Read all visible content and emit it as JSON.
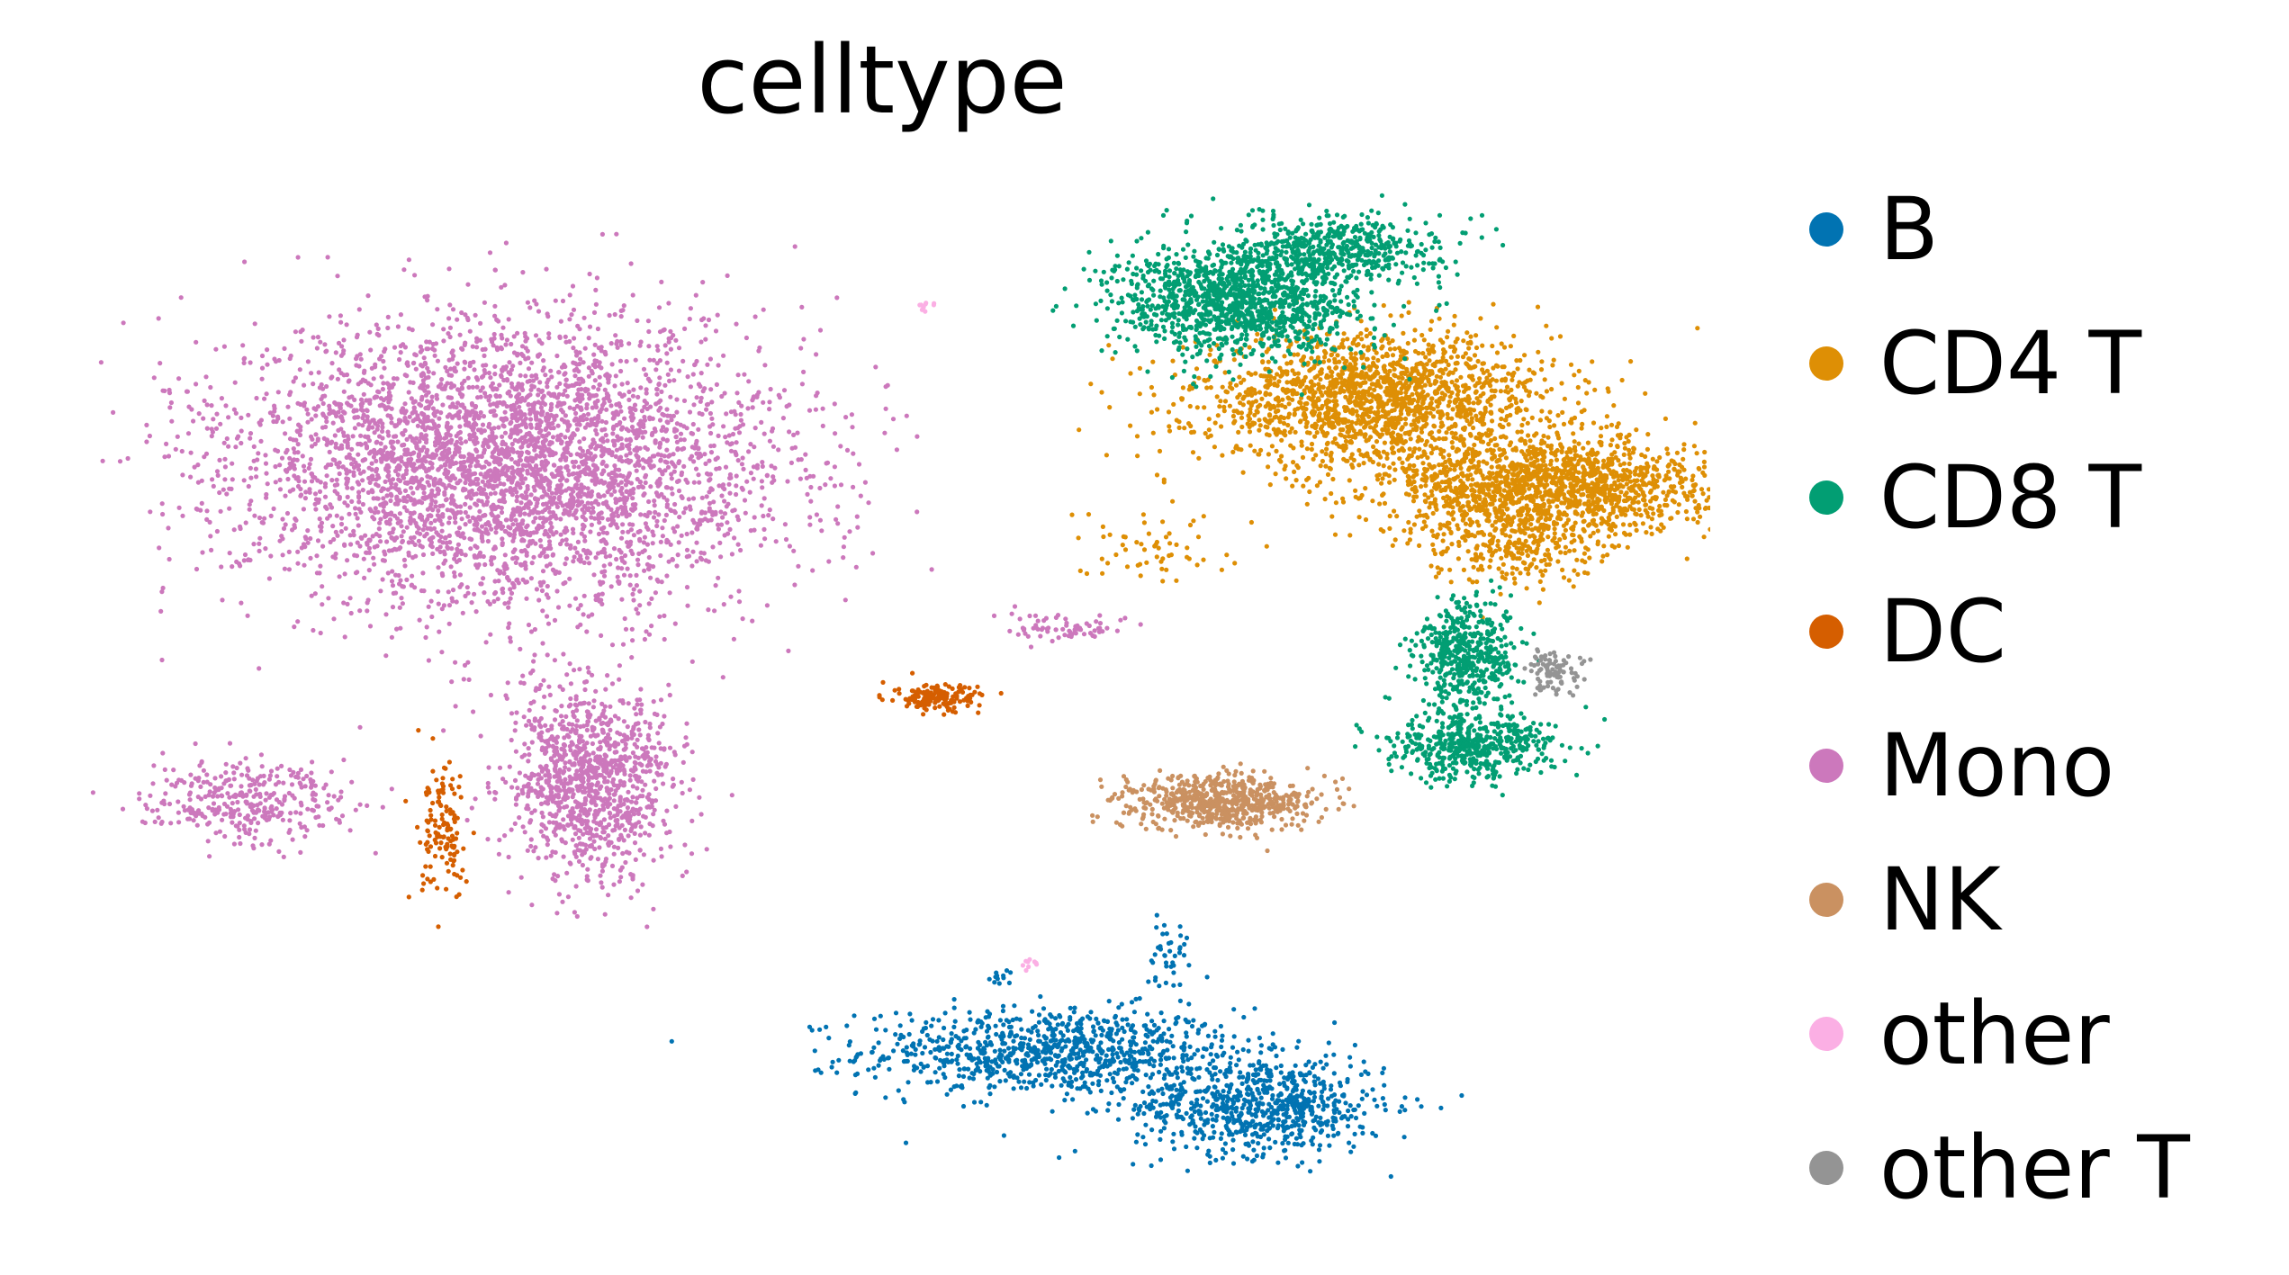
{
  "chart_data": {
    "type": "scatter",
    "title": "celltype",
    "xlabel": "",
    "ylabel": "",
    "grid": false,
    "legend_placement": "right",
    "series": [
      {
        "name": "B",
        "color": "#0173b2",
        "clusters": [
          {
            "cx": 0.42,
            "cy": -0.62,
            "sx": 0.09,
            "sy": 0.04,
            "n": 900
          },
          {
            "cx": 0.62,
            "cy": -0.72,
            "sx": 0.06,
            "sy": 0.045,
            "n": 750
          },
          {
            "cx": 0.53,
            "cy": -0.44,
            "sx": 0.01,
            "sy": 0.03,
            "n": 40
          },
          {
            "cx": 0.37,
            "cy": -0.48,
            "sx": 0.006,
            "sy": 0.01,
            "n": 12
          }
        ]
      },
      {
        "name": "CD4 T",
        "color": "#de8f05",
        "clusters": [
          {
            "cx": 0.73,
            "cy": 0.58,
            "sx": 0.085,
            "sy": 0.06,
            "n": 1800
          },
          {
            "cx": 0.9,
            "cy": 0.42,
            "sx": 0.08,
            "sy": 0.045,
            "n": 1500
          },
          {
            "cx": 0.86,
            "cy": 0.32,
            "sx": 0.04,
            "sy": 0.04,
            "n": 300
          },
          {
            "cx": 0.52,
            "cy": 0.31,
            "sx": 0.04,
            "sy": 0.04,
            "n": 60
          }
        ]
      },
      {
        "name": "CD8 T",
        "color": "#029e73",
        "clusters": [
          {
            "cx": 0.6,
            "cy": 0.76,
            "sx": 0.06,
            "sy": 0.05,
            "n": 1300
          },
          {
            "cx": 0.69,
            "cy": 0.86,
            "sx": 0.05,
            "sy": 0.03,
            "n": 500
          },
          {
            "cx": 0.82,
            "cy": 0.11,
            "sx": 0.025,
            "sy": 0.05,
            "n": 500
          },
          {
            "cx": 0.82,
            "cy": -0.06,
            "sx": 0.04,
            "sy": 0.03,
            "n": 500
          }
        ]
      },
      {
        "name": "DC",
        "color": "#d55e00",
        "clusters": [
          {
            "cx": 0.31,
            "cy": 0.03,
            "sx": 0.02,
            "sy": 0.012,
            "n": 160
          },
          {
            "cx": -0.16,
            "cy": -0.22,
            "sx": 0.012,
            "sy": 0.06,
            "n": 130
          }
        ]
      },
      {
        "name": "Mono",
        "color": "#cc78bc",
        "clusters": [
          {
            "cx": -0.1,
            "cy": 0.46,
            "sx": 0.13,
            "sy": 0.13,
            "n": 4200
          },
          {
            "cx": -0.02,
            "cy": -0.12,
            "sx": 0.04,
            "sy": 0.09,
            "n": 1100
          },
          {
            "cx": -0.35,
            "cy": -0.16,
            "sx": 0.05,
            "sy": 0.035,
            "n": 350
          },
          {
            "cx": 0.43,
            "cy": 0.16,
            "sx": 0.035,
            "sy": 0.012,
            "n": 70
          }
        ]
      },
      {
        "name": "NK",
        "color": "#ca9161",
        "clusters": [
          {
            "cx": 0.58,
            "cy": -0.16,
            "sx": 0.045,
            "sy": 0.025,
            "n": 650
          }
        ]
      },
      {
        "name": "other",
        "color": "#fbafe4",
        "clusters": [
          {
            "cx": 0.3,
            "cy": 0.75,
            "sx": 0.004,
            "sy": 0.006,
            "n": 10
          },
          {
            "cx": 0.4,
            "cy": -0.46,
            "sx": 0.004,
            "sy": 0.006,
            "n": 10
          }
        ]
      },
      {
        "name": "other T",
        "color": "#949494",
        "clusters": [
          {
            "cx": 0.9,
            "cy": 0.08,
            "sx": 0.015,
            "sy": 0.02,
            "n": 90
          }
        ]
      }
    ],
    "xlim": [
      -0.5,
      1.05
    ],
    "ylim": [
      -0.92,
      1.0
    ]
  }
}
